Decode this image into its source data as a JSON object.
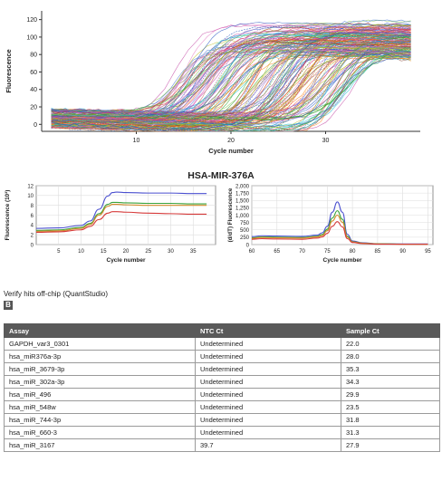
{
  "chart_data": [
    {
      "type": "line",
      "title": "",
      "xlabel": "Cycle number",
      "ylabel": "Fluorescence",
      "xlim": [
        0,
        40
      ],
      "ylim": [
        -8,
        130
      ],
      "x_ticks": [
        10,
        20,
        30
      ],
      "y_ticks": [
        0,
        20,
        40,
        60,
        80,
        100,
        120
      ],
      "grid": false,
      "legend": "none",
      "series_count": 180,
      "ct_range": [
        14,
        33
      ],
      "plateau_range": [
        90,
        125
      ],
      "palette": [
        "#1f4fbf",
        "#2ca02c",
        "#d62728",
        "#9467bd",
        "#17becf",
        "#e377c2",
        "#ff7f0e",
        "#8c564b",
        "#bcbd22",
        "#7fbf3f",
        "#3b6fd4",
        "#c03fa0"
      ]
    },
    {
      "type": "line",
      "title": "HSA-MIR-376A",
      "xlabel": "Cycle number",
      "ylabel": "Fluorescence (10³)",
      "xlim": [
        0,
        40
      ],
      "ylim": [
        0,
        12
      ],
      "x_ticks": [
        5,
        10,
        15,
        20,
        25,
        30,
        35
      ],
      "y_ticks": [
        0,
        2,
        4,
        6,
        8,
        10,
        12
      ],
      "grid": true,
      "series": [
        {
          "color": "#4a4fcf",
          "x": [
            0,
            5,
            10,
            12,
            14,
            16,
            17,
            18,
            20,
            25,
            30,
            35,
            38
          ],
          "values": [
            3.3,
            3.4,
            3.9,
            4.8,
            7.2,
            9.9,
            10.6,
            10.7,
            10.6,
            10.5,
            10.5,
            10.4,
            10.4
          ]
        },
        {
          "color": "#3aa23a",
          "x": [
            0,
            5,
            10,
            12,
            14,
            16,
            17,
            18,
            20,
            25,
            30,
            35,
            38
          ],
          "values": [
            2.9,
            3.0,
            3.5,
            4.3,
            6.3,
            8.2,
            8.6,
            8.6,
            8.5,
            8.4,
            8.4,
            8.3,
            8.3
          ]
        },
        {
          "color": "#d28a2a",
          "x": [
            0,
            5,
            10,
            12,
            14,
            16,
            17,
            18,
            20,
            25,
            30,
            35,
            38
          ],
          "values": [
            2.7,
            2.8,
            3.3,
            4.1,
            6.0,
            7.8,
            8.2,
            8.2,
            8.1,
            8.0,
            8.0,
            8.0,
            8.0
          ]
        },
        {
          "color": "#d63a3a",
          "x": [
            0,
            5,
            10,
            12,
            14,
            16,
            17,
            18,
            20,
            25,
            30,
            35,
            38
          ],
          "values": [
            2.5,
            2.6,
            3.0,
            3.7,
            5.1,
            6.4,
            6.7,
            6.7,
            6.6,
            6.4,
            6.3,
            6.2,
            6.2
          ]
        }
      ]
    },
    {
      "type": "line",
      "title": "",
      "xlabel": "Cycle number",
      "ylabel": "(d/dT) Fluorescence",
      "xlim": [
        60,
        96
      ],
      "ylim": [
        0,
        2000
      ],
      "x_ticks": [
        60,
        65,
        70,
        75,
        80,
        85,
        90,
        95
      ],
      "y_ticks": [
        0,
        250,
        500,
        750,
        1000,
        1250,
        1500,
        1750,
        2000
      ],
      "y_tick_labels": [
        "0",
        "250",
        "500",
        "750",
        "1,000",
        "1,250",
        "1,500",
        "1,750",
        "2,000"
      ],
      "grid": true,
      "series": [
        {
          "color": "#4a4fcf",
          "x": [
            60,
            62,
            65,
            70,
            73,
            74,
            75,
            76,
            77,
            78,
            79,
            80,
            82,
            85,
            90,
            95
          ],
          "values": [
            270,
            300,
            290,
            280,
            320,
            400,
            620,
            1100,
            1450,
            1100,
            350,
            120,
            60,
            30,
            20,
            20
          ]
        },
        {
          "color": "#3aa23a",
          "x": [
            60,
            62,
            65,
            70,
            73,
            74,
            75,
            76,
            77,
            78,
            79,
            80,
            82,
            85,
            90,
            95
          ],
          "values": [
            230,
            260,
            250,
            240,
            280,
            340,
            520,
            900,
            1150,
            860,
            280,
            100,
            50,
            25,
            15,
            15
          ]
        },
        {
          "color": "#d28a2a",
          "x": [
            60,
            62,
            65,
            70,
            73,
            74,
            75,
            76,
            77,
            78,
            79,
            80,
            82,
            85,
            90,
            95
          ],
          "values": [
            210,
            240,
            230,
            220,
            260,
            310,
            470,
            800,
            1000,
            760,
            250,
            90,
            45,
            20,
            12,
            12
          ]
        },
        {
          "color": "#d63a3a",
          "x": [
            60,
            62,
            65,
            70,
            73,
            74,
            75,
            76,
            77,
            78,
            79,
            80,
            82,
            85,
            90,
            95
          ],
          "values": [
            180,
            200,
            190,
            180,
            220,
            260,
            380,
            620,
            780,
            600,
            200,
            70,
            35,
            15,
            10,
            10
          ]
        }
      ]
    },
    {
      "type": "table",
      "columns": [
        "Assay",
        "NTC Ct",
        "Sample Ct"
      ],
      "rows": [
        [
          "GAPDH_var3_0301",
          "Undetermined",
          "22.0"
        ],
        [
          "hsa_miR376a-3p",
          "Undetermined",
          "28.0"
        ],
        [
          "hsa_miR_3679-3p",
          "Undetermined",
          "35.3"
        ],
        [
          "hsa_miR_302a-3p",
          "Undetermined",
          "34.3"
        ],
        [
          "hsa_miR_496",
          "Undetermined",
          "29.9"
        ],
        [
          "hsa_miR_548w",
          "Undetermined",
          "23.5"
        ],
        [
          "hsa_miR_744-3p",
          "Undetermined",
          "31.8"
        ],
        [
          "hsa_miR_660-3",
          "Undetermined",
          "31.3"
        ],
        [
          "hsa_miR_3167",
          "39.7",
          "27.9"
        ]
      ]
    }
  ],
  "section": {
    "label": "Verify hits off-chip (QuantStudio)",
    "badge": "B"
  }
}
